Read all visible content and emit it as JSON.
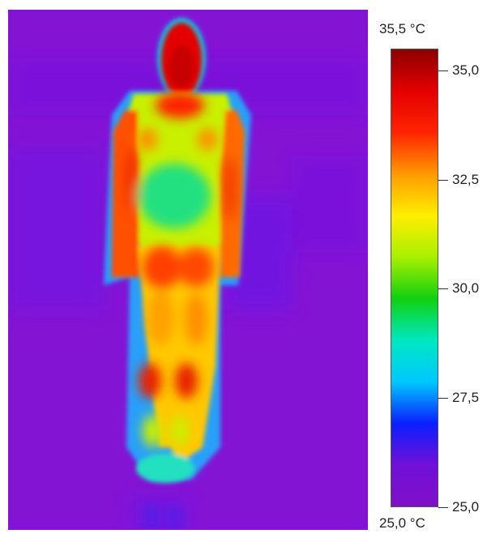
{
  "colorbar": {
    "max_label": "35,5 °C",
    "min_label": "25,0 °C",
    "range": [
      25.0,
      35.5
    ],
    "ticks": [
      {
        "value": 35.0,
        "label": "35,0"
      },
      {
        "value": 32.5,
        "label": "32,5"
      },
      {
        "value": 30.0,
        "label": "30,0"
      },
      {
        "value": 27.5,
        "label": "27,5"
      },
      {
        "value": 25.0,
        "label": "25,0"
      }
    ],
    "palette": [
      "#8b0000",
      "#e40000",
      "#ff2400",
      "#ff9a00",
      "#ffee00",
      "#a8f000",
      "#10d010",
      "#00e8c0",
      "#00c8ff",
      "#0a20ff",
      "#7010d8",
      "#8010c8"
    ]
  },
  "thermal_image": {
    "background_color": "#8414d4",
    "subject": "standing person (thermogram)"
  }
}
